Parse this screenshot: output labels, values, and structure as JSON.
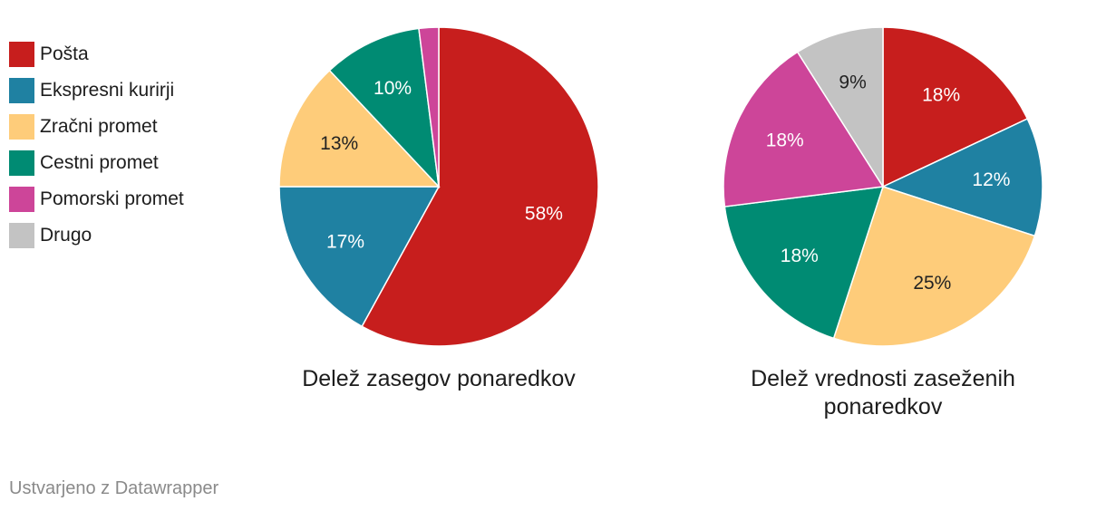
{
  "legend": [
    {
      "label": "Pošta",
      "color": "#c71e1d"
    },
    {
      "label": "Ekspresni kurirji",
      "color": "#1f81a2"
    },
    {
      "label": "Zračni promet",
      "color": "#fecc7a"
    },
    {
      "label": "Cestni promet",
      "color": "#008b73"
    },
    {
      "label": "Pomorski promet",
      "color": "#cd4599"
    },
    {
      "label": "Drugo",
      "color": "#c3c3c3"
    }
  ],
  "chart_data": [
    {
      "type": "pie",
      "title": "Delež zasegov ponaredkov",
      "slices": [
        {
          "category": "Pošta",
          "value": 58,
          "label": "58%"
        },
        {
          "category": "Ekspresni kurirji",
          "value": 17,
          "label": "17%"
        },
        {
          "category": "Zračni promet",
          "value": 13,
          "label": "13%"
        },
        {
          "category": "Cestni promet",
          "value": 10,
          "label": "10%"
        },
        {
          "category": "Pomorski promet",
          "value": 2,
          "label": ""
        }
      ]
    },
    {
      "type": "pie",
      "title": "Delež vrednosti zaseženih ponaredkov",
      "slices": [
        {
          "category": "Pošta",
          "value": 18,
          "label": "18%"
        },
        {
          "category": "Ekspresni kurirji",
          "value": 12,
          "label": "12%"
        },
        {
          "category": "Zračni promet",
          "value": 25,
          "label": "25%"
        },
        {
          "category": "Cestni promet",
          "value": 18,
          "label": "18%"
        },
        {
          "category": "Pomorski promet",
          "value": 18,
          "label": "18%"
        },
        {
          "category": "Drugo",
          "value": 9,
          "label": "9%"
        }
      ]
    }
  ],
  "footer": "Ustvarjeno z Datawrapper"
}
